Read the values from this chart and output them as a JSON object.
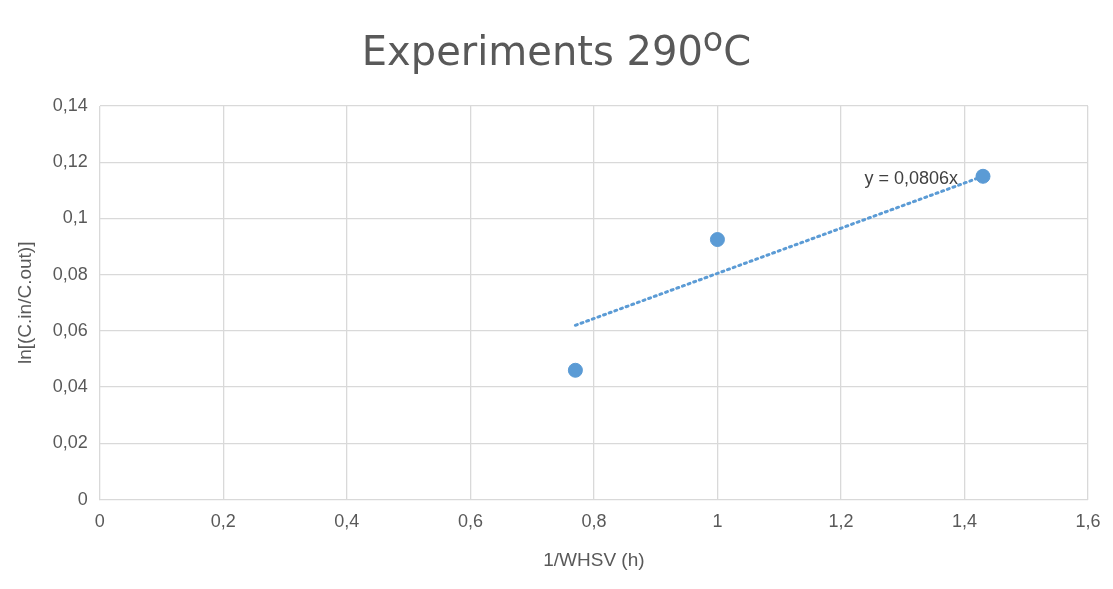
{
  "chart_data": {
    "type": "scatter",
    "title": "Experiments 290$^{o}$C",
    "xlabel": "1/WHSV (h)",
    "ylabel": "ln[(C.in/C.out)]",
    "x": [
      0.77,
      1,
      1.43
    ],
    "series": [
      {
        "color": "#5b9bd5",
        "values": [
          0.046,
          0.0925,
          0.115
        ],
        "marker": "circle"
      },
      {
        "type": "line",
        "color": "#5b9bd5",
        "x": [
          0.77,
          1.43
        ],
        "values": [
          0.062,
          0.115
        ],
        "marker": "none",
        "line_style": "dotted"
      }
    ],
    "xlim": [
      0,
      1.6
    ],
    "xticks": [
      0,
      {
        "value": 0.2,
        "label": "0,2"
      },
      {
        "value": 0.4,
        "label": "0,4"
      },
      {
        "value": 0.6,
        "label": "0,6"
      },
      {
        "value": 0.8,
        "label": "0,8"
      },
      1,
      {
        "value": 1.2,
        "label": "1,2"
      },
      {
        "value": 1.4,
        "label": "1,4"
      },
      {
        "value": 1.6,
        "label": "1,6"
      }
    ],
    "ylim": [
      0,
      0.14
    ],
    "yticks": [
      0,
      {
        "value": 0.02,
        "label": "0,02"
      },
      {
        "value": 0.04,
        "label": "0,04"
      },
      {
        "value": 0.06,
        "label": "0,06"
      },
      {
        "value": 0.08,
        "label": "0,08"
      },
      {
        "value": 0.1,
        "label": "0,1"
      },
      {
        "value": 0.12,
        "label": "0,12"
      },
      {
        "value": 0.14,
        "label": "0,14"
      }
    ],
    "grid": true,
    "legend": false,
    "annotations": [
      "y = 0,0806x"
    ]
  }
}
